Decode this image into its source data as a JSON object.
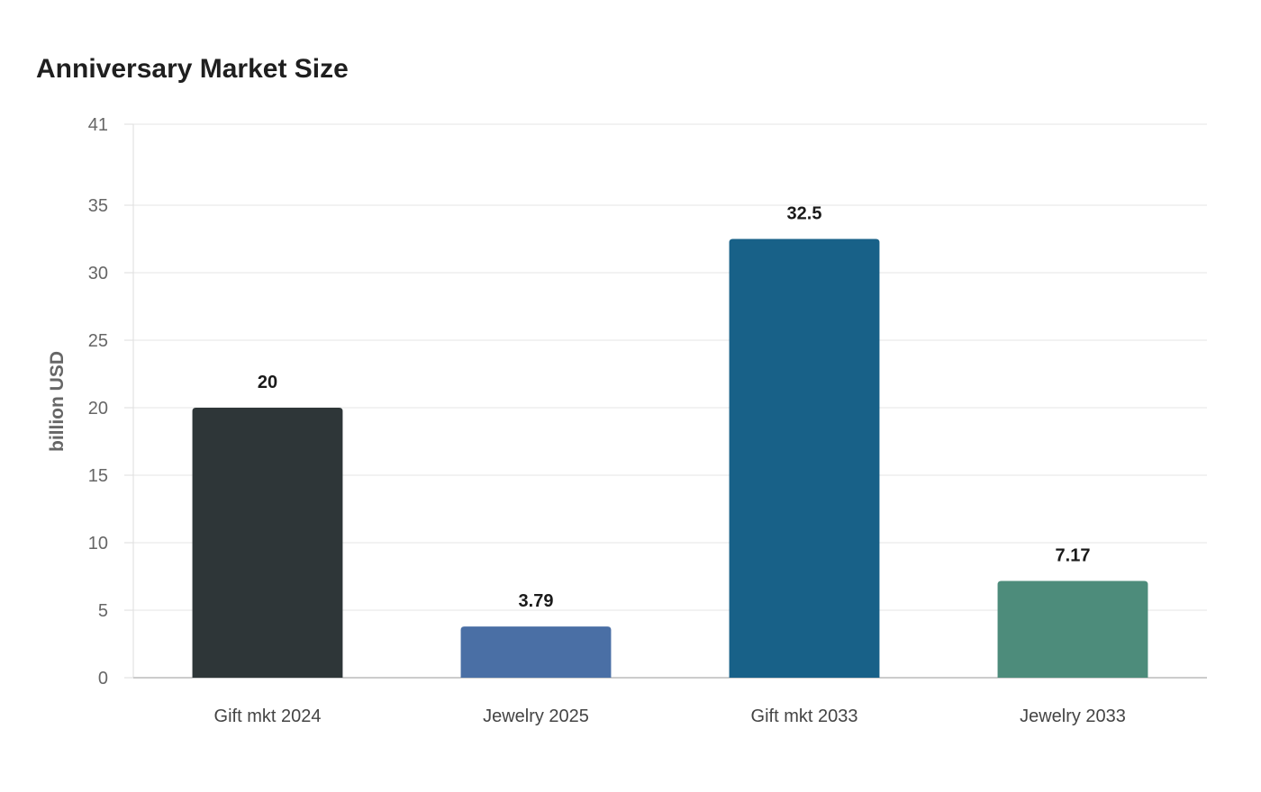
{
  "chart_data": {
    "type": "bar",
    "title": "Anniversary Market Size",
    "xlabel": "",
    "ylabel": "billion USD",
    "categories": [
      "Gift mkt 2024",
      "Jewelry 2025",
      "Gift mkt 2033",
      "Jewelry 2033"
    ],
    "values": [
      20,
      3.79,
      32.5,
      7.17
    ],
    "value_labels": [
      "20",
      "3.79",
      "32.5",
      "7.17"
    ],
    "colors": [
      "#2e3638",
      "#4a6fa5",
      "#186188",
      "#4d8c7b"
    ],
    "ylim": [
      0,
      41
    ],
    "yticks": [
      0,
      5,
      10,
      15,
      20,
      25,
      30,
      35,
      41
    ],
    "grid": true,
    "legend": "none"
  }
}
